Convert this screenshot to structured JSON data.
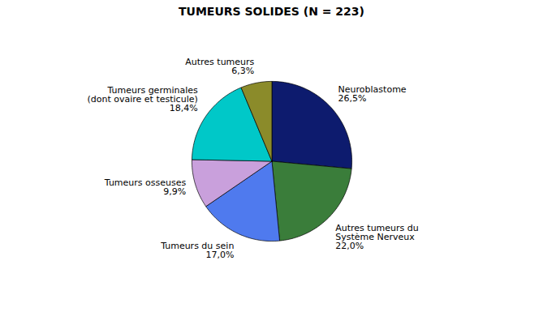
{
  "chart_data": {
    "type": "pie",
    "title": "TUMEURS SOLIDES (N = 223)",
    "categories": [
      "Neuroblastome",
      "Autres tumeurs du\nSystème Nerveux",
      "Tumeurs du sein",
      "Tumeurs osseuses",
      "Tumeurs germinales\n(dont ovaire et testicule)",
      "Autres tumeurs"
    ],
    "values": [
      26.5,
      22.0,
      17.0,
      9.9,
      18.4,
      6.3
    ],
    "value_labels": [
      "26,5%",
      "22,0%",
      "17,0%",
      "9,9%",
      "18,4%",
      "6,3%"
    ],
    "colors": [
      "#0d1b6e",
      "#3a7d3a",
      "#4f7aee",
      "#c9a0dc",
      "#00c8c8",
      "#8b8b2a"
    ],
    "data_labels": true
  }
}
